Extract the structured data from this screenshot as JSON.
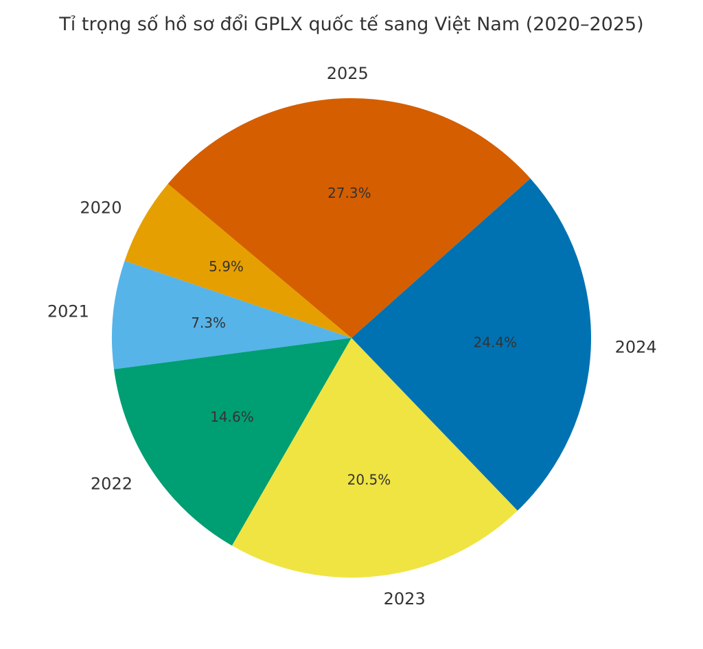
{
  "chart_data": {
    "type": "pie",
    "title": "Tỉ trọng số hồ sơ đổi GPLX quốc tế sang Việt Nam (2020–2025)",
    "categories": [
      "2020",
      "2021",
      "2022",
      "2023",
      "2024",
      "2025"
    ],
    "values": [
      5.9,
      7.3,
      14.6,
      20.5,
      24.4,
      27.3
    ],
    "value_labels": [
      "5.9%",
      "7.3%",
      "14.6%",
      "20.5%",
      "24.4%",
      "27.3%"
    ],
    "colors": [
      "#E69F00",
      "#56B4E9",
      "#009E73",
      "#F0E442",
      "#0072B2",
      "#D55E00"
    ],
    "start_angle_deg": 140,
    "direction": "counterclockwise",
    "legend": "none"
  }
}
